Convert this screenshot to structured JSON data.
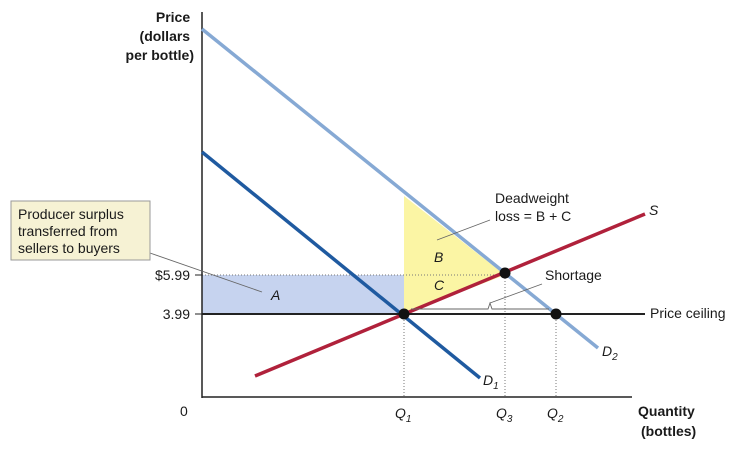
{
  "y_axis_title": [
    "Price",
    "(dollars",
    "per bottle)"
  ],
  "x_axis_title": [
    "Quantity",
    "(bottles)"
  ],
  "origin_label": "0",
  "price_labels": {
    "high": "$5.99",
    "ceiling": "3.99"
  },
  "quantity_labels": [
    {
      "main": "Q",
      "sub": "1"
    },
    {
      "main": "Q",
      "sub": "3"
    },
    {
      "main": "Q",
      "sub": "2"
    }
  ],
  "curve_labels": {
    "d1": {
      "main": "D",
      "sub": "1"
    },
    "d2": {
      "main": "D",
      "sub": "2"
    },
    "s": "S"
  },
  "areas": {
    "a": "A",
    "b": "B",
    "c": "C"
  },
  "callouts": {
    "producer_surplus": [
      "Producer surplus",
      "transferred from",
      "sellers to buyers"
    ],
    "deadweight": [
      "Deadweight",
      "loss = B + C"
    ],
    "shortage": "Shortage",
    "price_ceiling": "Price ceiling"
  },
  "colors": {
    "supply": "#b0213b",
    "demand1": "#1f5aa0",
    "demand2": "#86a9d4",
    "area_a": "#c6d3ef",
    "area_bc": "#fbf5a4",
    "callout_box": "#f6f2d4",
    "ceiling_line": "#222222"
  }
}
